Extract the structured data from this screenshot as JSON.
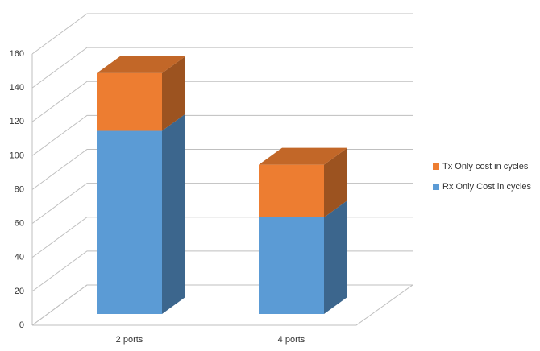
{
  "chart_data": {
    "type": "bar3d-stacked",
    "categories": [
      "2 ports",
      "4 ports"
    ],
    "series": [
      {
        "name": "Rx Only Cost in cycles",
        "color": "#5b9bd5",
        "values": [
          108,
          57
        ]
      },
      {
        "name": "Tx Only cost in cycles",
        "color": "#ed7d31",
        "values": [
          34,
          31
        ]
      }
    ],
    "ylim": [
      0,
      160
    ],
    "yticks": [
      0,
      20,
      40,
      60,
      80,
      100,
      120,
      140,
      160
    ],
    "grid": true,
    "legend": "right"
  }
}
